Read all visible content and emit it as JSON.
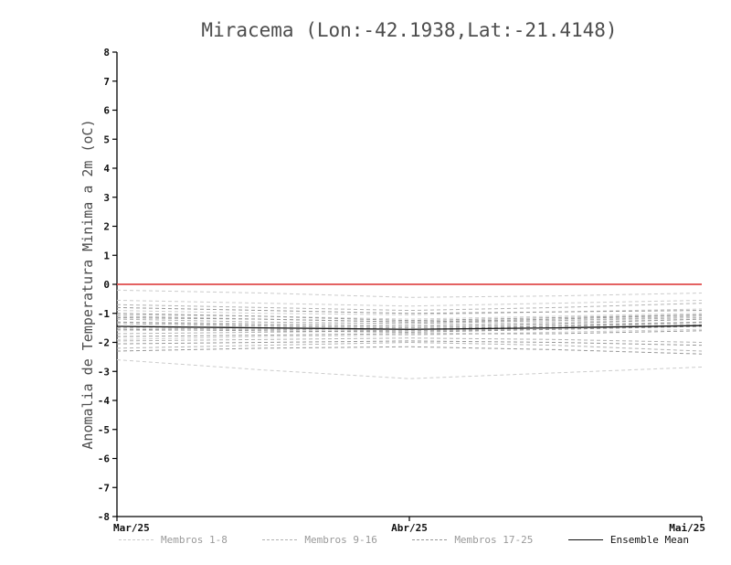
{
  "chart_data": {
    "type": "line",
    "title": "Miracema (Lon:-42.1938,Lat:-21.4148)",
    "ylabel": "Anomalia de Temperatura Minima a 2m (oC)",
    "xlabel": "",
    "ylim": [
      -8,
      8
    ],
    "ytick_step": 1,
    "grid": false,
    "legend_position": "bottom",
    "x": [
      0,
      0.5,
      1,
      1.5,
      2
    ],
    "x_ticks": [
      {
        "pos": 0,
        "label": "Mar/25"
      },
      {
        "pos": 1,
        "label": "Abr/25"
      },
      {
        "pos": 2,
        "label": "Mai/25"
      }
    ],
    "zero_line": {
      "value": 0,
      "color": "#e04b4b"
    },
    "groups": [
      {
        "name": "Membros 1-8",
        "color": "#cccccc",
        "style": "dashed",
        "members": [
          [
            -0.2,
            -0.3,
            -0.45,
            -0.4,
            -0.3
          ],
          [
            -0.55,
            -0.65,
            -0.75,
            -0.65,
            -0.55
          ],
          [
            -0.9,
            -1.0,
            -1.05,
            -0.95,
            -0.85
          ],
          [
            -1.05,
            -1.1,
            -1.2,
            -1.1,
            -1.0
          ],
          [
            -1.3,
            -1.35,
            -1.4,
            -1.3,
            -1.2
          ],
          [
            -1.6,
            -1.55,
            -1.5,
            -1.45,
            -1.35
          ],
          [
            -1.9,
            -1.8,
            -1.75,
            -1.65,
            -1.55
          ],
          [
            -2.6,
            -2.95,
            -3.25,
            -3.05,
            -2.85
          ]
        ]
      },
      {
        "name": "Membros 9-16",
        "color": "#b2b2b2",
        "style": "dashed",
        "members": [
          [
            -1.1,
            -1.2,
            -1.3,
            -1.25,
            -1.1
          ],
          [
            -1.35,
            -1.45,
            -1.5,
            -1.4,
            -1.3
          ],
          [
            -1.7,
            -1.65,
            -1.6,
            -1.55,
            -1.45
          ],
          [
            -1.95,
            -1.9,
            -1.85,
            -1.9,
            -2.0
          ],
          [
            -2.2,
            -2.1,
            -2.0,
            -2.1,
            -2.3
          ],
          [
            -0.7,
            -0.8,
            -0.9,
            -0.8,
            -0.65
          ],
          [
            -1.2,
            -1.3,
            -1.35,
            -1.25,
            -1.15
          ],
          [
            -1.5,
            -1.55,
            -1.6,
            -1.5,
            -1.4
          ]
        ]
      },
      {
        "name": "Membros 17-25",
        "color": "#979797",
        "style": "dashed",
        "members": [
          [
            -1.0,
            -1.1,
            -1.25,
            -1.15,
            -1.05
          ],
          [
            -1.3,
            -1.4,
            -1.45,
            -1.35,
            -1.2
          ],
          [
            -1.55,
            -1.6,
            -1.65,
            -1.55,
            -1.45
          ],
          [
            -1.8,
            -1.75,
            -1.7,
            -1.7,
            -1.6
          ],
          [
            -2.05,
            -2.0,
            -1.95,
            -2.0,
            -2.1
          ],
          [
            -2.3,
            -2.2,
            -2.15,
            -2.25,
            -2.4
          ],
          [
            -0.8,
            -0.9,
            -1.0,
            -0.95,
            -0.9
          ],
          [
            -1.45,
            -1.5,
            -1.55,
            -1.45,
            -1.3
          ],
          [
            -1.15,
            -1.2,
            -1.3,
            -1.2,
            -1.05
          ]
        ]
      }
    ],
    "ensemble_mean": {
      "name": "Ensemble Mean",
      "color": "#111111",
      "style": "solid",
      "values": [
        -1.45,
        -1.5,
        -1.55,
        -1.5,
        -1.42
      ]
    },
    "colors": {
      "axis": "#000000",
      "title_text": "#4d4d4d",
      "tick_text": "#111111"
    }
  }
}
